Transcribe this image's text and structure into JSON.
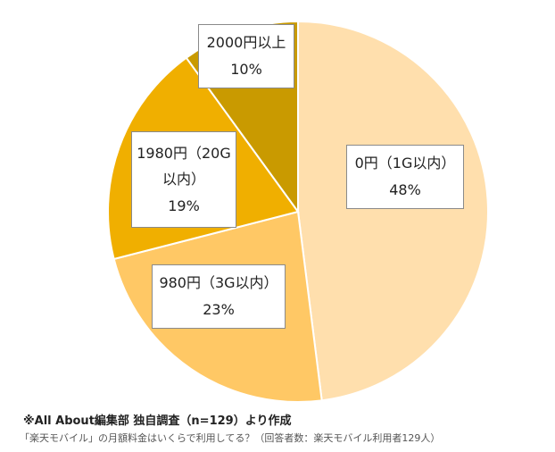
{
  "chart_data": {
    "type": "pie",
    "categories": [
      "0円（1G以内）",
      "980円（3G以内）",
      "1980円（20G以内）",
      "2000円以上"
    ],
    "values": [
      48,
      23,
      19,
      10
    ],
    "value_labels": [
      "48%",
      "23%",
      "19%",
      "10%"
    ],
    "label_lines": [
      [
        "0円（1G以内）",
        "48%"
      ],
      [
        "980円（3G以内）",
        "23%"
      ],
      [
        "1980円（20G",
        "以内）",
        "19%"
      ],
      [
        "2000円以上",
        "10%"
      ]
    ],
    "colors": [
      "#FFDFAD",
      "#FFC865",
      "#F0AF00",
      "#C99A00"
    ],
    "start": "top",
    "direction": "clockwise",
    "legend": "none"
  },
  "source_note": "※All About編集部 独自調査（n=129）より作成",
  "caption": "「楽天モバイル」の月額料金はいくらで利用してる？（回答者数：楽天モバイル利用者129人）"
}
